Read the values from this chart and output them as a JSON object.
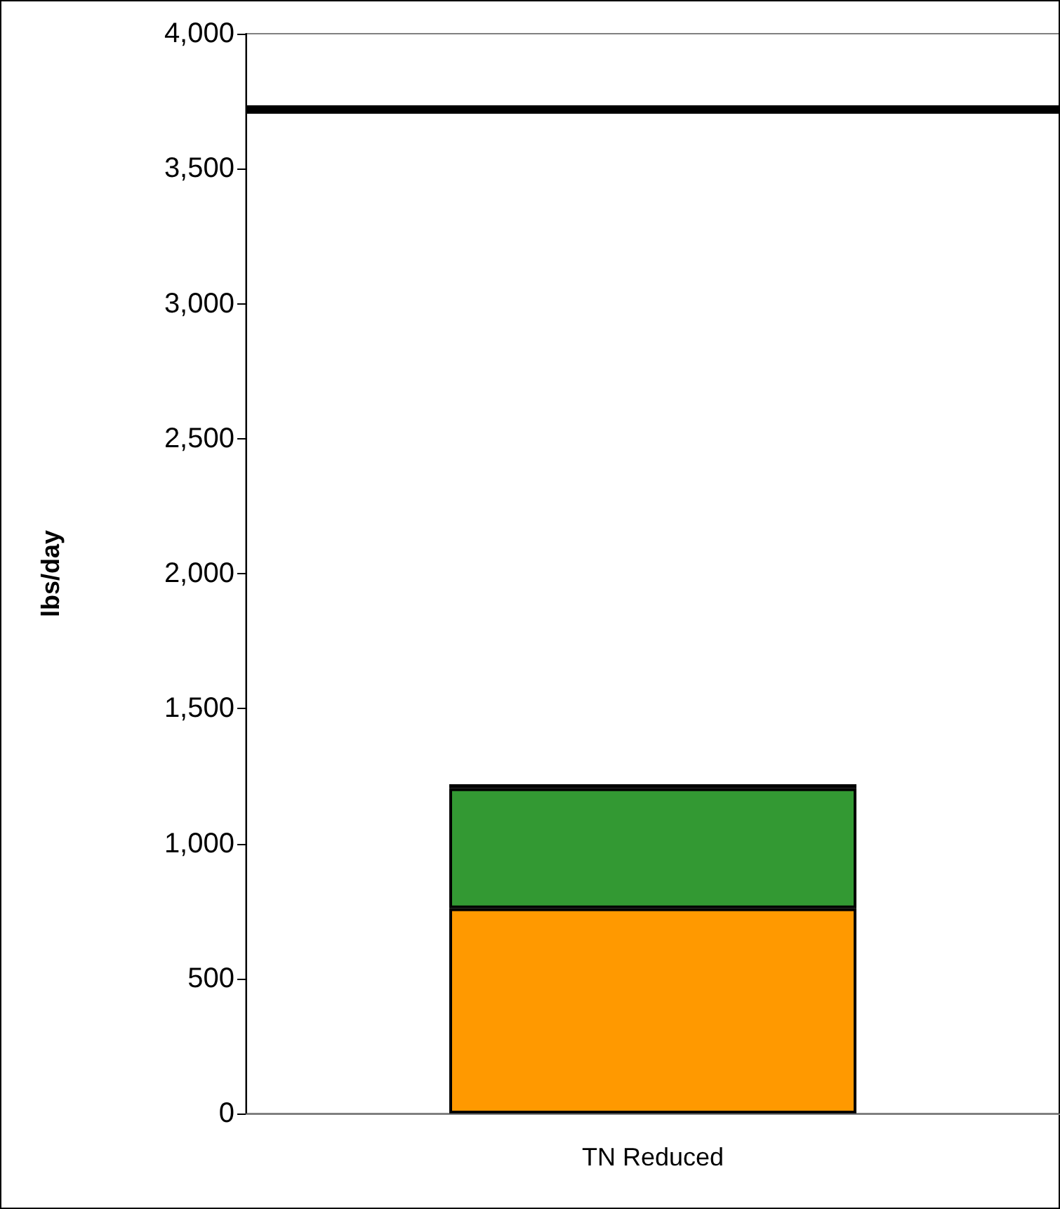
{
  "chart_data": {
    "type": "bar",
    "stacked": true,
    "ylabel": "lbs/day",
    "categories": [
      "TN Reduced"
    ],
    "series": [
      {
        "color": "#ff9900",
        "values": [
          760
        ]
      },
      {
        "color": "#339933",
        "values": [
          445
        ]
      },
      {
        "color": "#3333cc",
        "values": [
          15
        ]
      }
    ],
    "ylim": [
      0,
      4000
    ],
    "yticks": [
      0,
      500,
      {
        "value": 1000,
        "label": "1,000"
      },
      {
        "value": 1500,
        "label": "1,500"
      },
      {
        "value": 2000,
        "label": "2,000"
      },
      {
        "value": 2500,
        "label": "2,500"
      },
      {
        "value": 3000,
        "label": "3,000"
      },
      {
        "value": 3500,
        "label": "3,500"
      },
      {
        "value": 4000,
        "label": "4,000"
      }
    ],
    "grid": false,
    "ref_lines": [
      {
        "axis": "y",
        "value": 3720,
        "color": "#000000"
      }
    ]
  }
}
